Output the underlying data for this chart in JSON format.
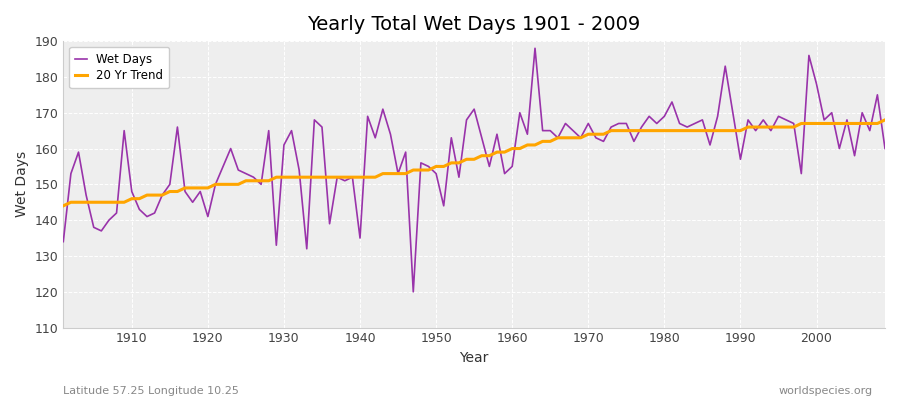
{
  "title": "Yearly Total Wet Days 1901 - 2009",
  "xlabel": "Year",
  "ylabel": "Wet Days",
  "subtitle": "Latitude 57.25 Longitude 10.25",
  "watermark": "worldspecies.org",
  "ylim": [
    110,
    190
  ],
  "xlim": [
    1901,
    2009
  ],
  "yticks": [
    110,
    120,
    130,
    140,
    150,
    160,
    170,
    180,
    190
  ],
  "xticks": [
    1910,
    1920,
    1930,
    1940,
    1950,
    1960,
    1970,
    1980,
    1990,
    2000
  ],
  "wet_days_color": "#9933aa",
  "trend_color": "#ffa500",
  "bg_color": "#f5f5f5",
  "plot_bg_color": "#ebebeb",
  "wet_days_years": [
    1901,
    1902,
    1903,
    1904,
    1905,
    1906,
    1907,
    1908,
    1909,
    1910,
    1911,
    1912,
    1913,
    1914,
    1915,
    1916,
    1917,
    1918,
    1919,
    1920,
    1921,
    1922,
    1923,
    1924,
    1925,
    1926,
    1927,
    1928,
    1929,
    1930,
    1931,
    1932,
    1933,
    1934,
    1935,
    1936,
    1937,
    1938,
    1939,
    1940,
    1941,
    1942,
    1943,
    1944,
    1945,
    1946,
    1947,
    1948,
    1949,
    1950,
    1951,
    1952,
    1953,
    1954,
    1955,
    1956,
    1957,
    1958,
    1959,
    1960,
    1961,
    1962,
    1963,
    1964,
    1965,
    1966,
    1967,
    1968,
    1969,
    1970,
    1971,
    1972,
    1973,
    1974,
    1975,
    1976,
    1977,
    1978,
    1979,
    1980,
    1981,
    1982,
    1983,
    1984,
    1985,
    1986,
    1987,
    1988,
    1989,
    1990,
    1991,
    1992,
    1993,
    1994,
    1995,
    1996,
    1997,
    1998,
    1999,
    2000,
    2001,
    2002,
    2003,
    2004,
    2005,
    2006,
    2007,
    2008,
    2009
  ],
  "wet_days_values": [
    134,
    153,
    159,
    147,
    138,
    137,
    140,
    142,
    165,
    148,
    143,
    141,
    142,
    147,
    150,
    166,
    148,
    145,
    148,
    141,
    150,
    155,
    160,
    154,
    153,
    152,
    150,
    165,
    133,
    161,
    165,
    154,
    132,
    168,
    166,
    139,
    152,
    151,
    152,
    135,
    169,
    163,
    171,
    164,
    153,
    159,
    120,
    156,
    155,
    153,
    144,
    163,
    152,
    168,
    171,
    163,
    155,
    164,
    153,
    155,
    170,
    164,
    188,
    165,
    165,
    163,
    167,
    165,
    163,
    167,
    163,
    162,
    166,
    167,
    167,
    162,
    166,
    169,
    167,
    169,
    173,
    167,
    166,
    167,
    168,
    161,
    169,
    183,
    170,
    157,
    168,
    165,
    168,
    165,
    169,
    168,
    167,
    153,
    186,
    178,
    168,
    170,
    160,
    168,
    158,
    170,
    165,
    175,
    160
  ],
  "trend_years": [
    1901,
    1902,
    1903,
    1904,
    1905,
    1906,
    1907,
    1908,
    1909,
    1910,
    1911,
    1912,
    1913,
    1914,
    1915,
    1916,
    1917,
    1918,
    1919,
    1920,
    1921,
    1922,
    1923,
    1924,
    1925,
    1926,
    1927,
    1928,
    1929,
    1930,
    1931,
    1932,
    1933,
    1934,
    1935,
    1936,
    1937,
    1938,
    1939,
    1940,
    1941,
    1942,
    1943,
    1944,
    1945,
    1946,
    1947,
    1948,
    1949,
    1950,
    1951,
    1952,
    1953,
    1954,
    1955,
    1956,
    1957,
    1958,
    1959,
    1960,
    1961,
    1962,
    1963,
    1964,
    1965,
    1966,
    1967,
    1968,
    1969,
    1970,
    1971,
    1972,
    1973,
    1974,
    1975,
    1976,
    1977,
    1978,
    1979,
    1980,
    1981,
    1982,
    1983,
    1984,
    1985,
    1986,
    1987,
    1988,
    1989,
    1990,
    1991,
    1992,
    1993,
    1994,
    1995,
    1996,
    1997,
    1998,
    1999,
    2000,
    2001,
    2002,
    2003,
    2004,
    2005,
    2006,
    2007,
    2008,
    2009
  ],
  "trend_values": [
    144,
    145,
    145,
    145,
    145,
    145,
    145,
    145,
    145,
    146,
    146,
    147,
    147,
    147,
    148,
    148,
    149,
    149,
    149,
    149,
    150,
    150,
    150,
    150,
    151,
    151,
    151,
    151,
    152,
    152,
    152,
    152,
    152,
    152,
    152,
    152,
    152,
    152,
    152,
    152,
    152,
    152,
    153,
    153,
    153,
    153,
    154,
    154,
    154,
    155,
    155,
    156,
    156,
    157,
    157,
    158,
    158,
    159,
    159,
    160,
    160,
    161,
    161,
    162,
    162,
    163,
    163,
    163,
    163,
    164,
    164,
    164,
    165,
    165,
    165,
    165,
    165,
    165,
    165,
    165,
    165,
    165,
    165,
    165,
    165,
    165,
    165,
    165,
    165,
    165,
    166,
    166,
    166,
    166,
    166,
    166,
    166,
    167,
    167,
    167,
    167,
    167,
    167,
    167,
    167,
    167,
    167,
    167,
    168
  ]
}
